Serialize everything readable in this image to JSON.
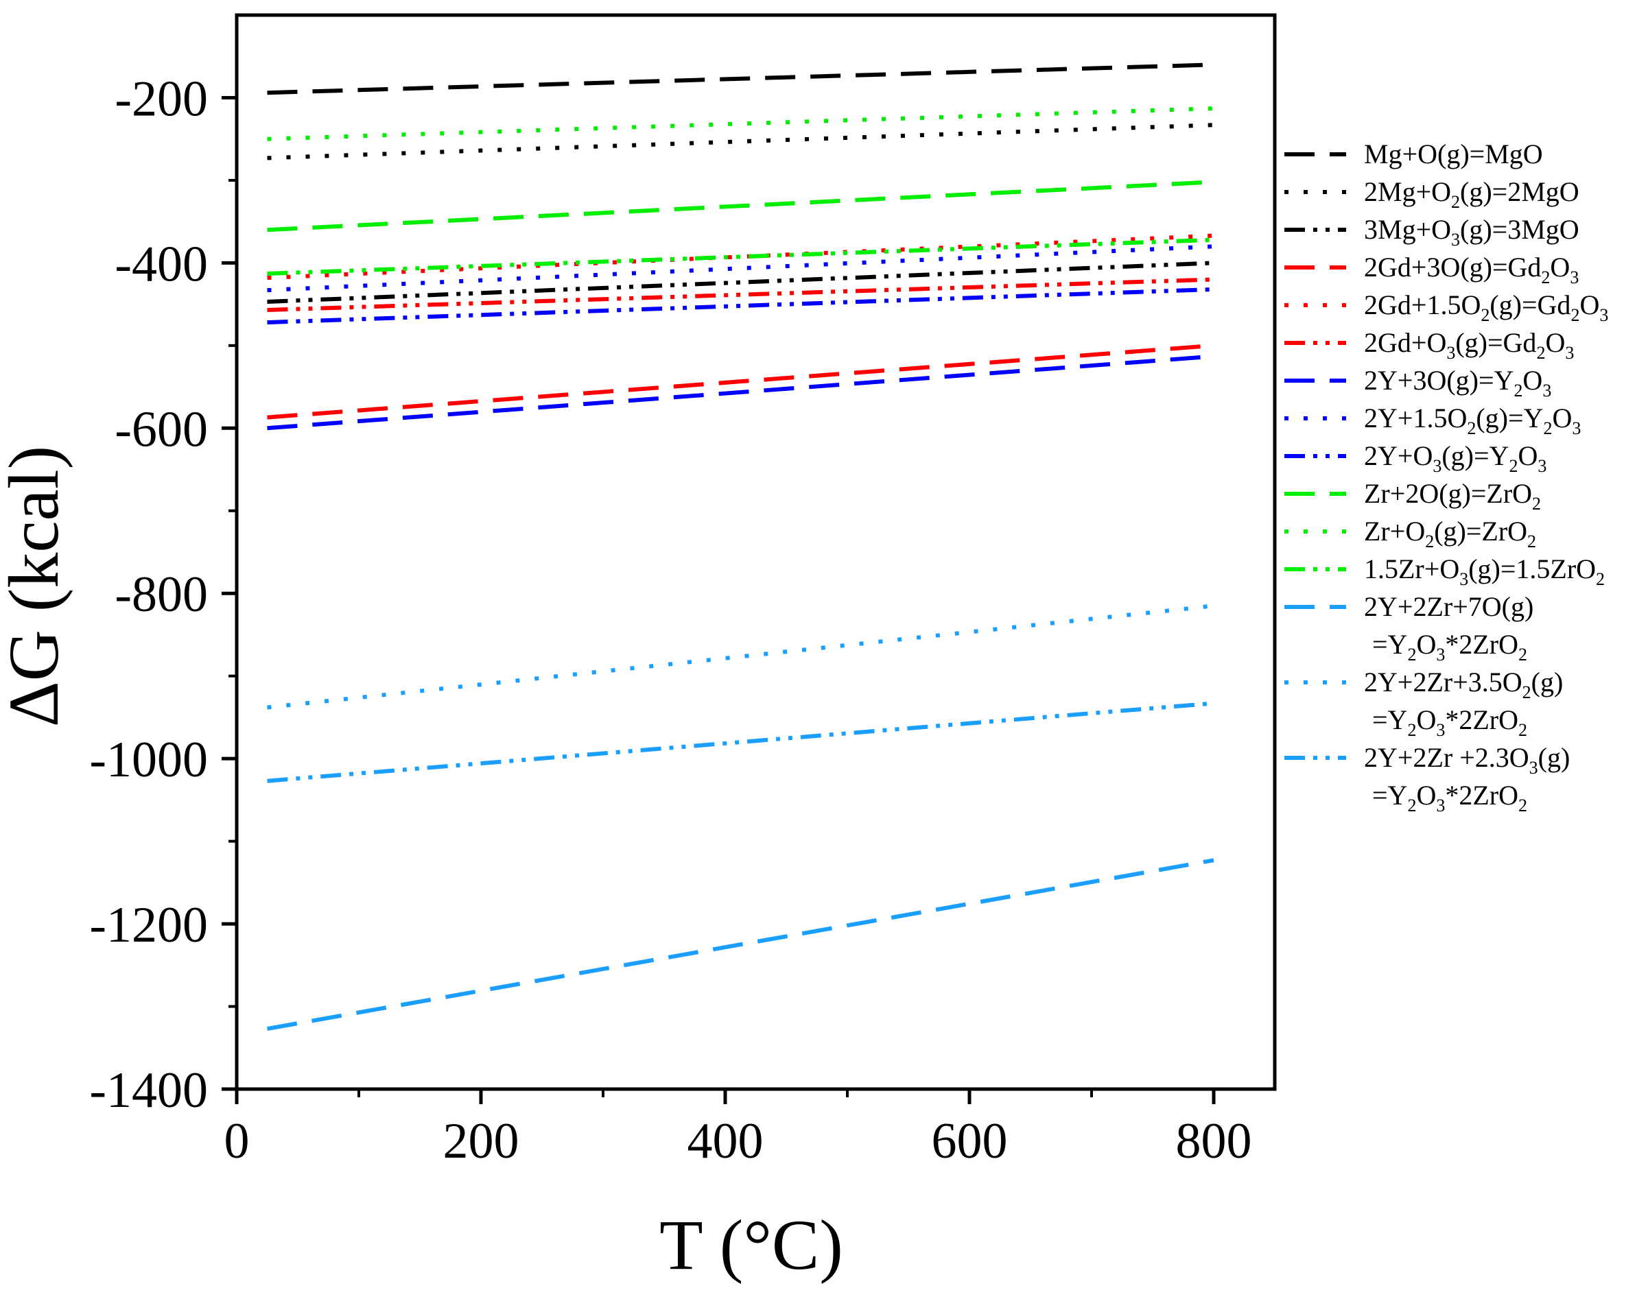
{
  "chart_data": {
    "type": "line",
    "xlabel": "T (°C)",
    "ylabel": "ΔG (kcal)",
    "xlim": [
      0,
      850
    ],
    "ylim": [
      -1400,
      -100
    ],
    "xticks": [
      0,
      200,
      400,
      600,
      800
    ],
    "yticks": [
      -200,
      -400,
      -600,
      -800,
      -1000,
      -1200,
      -1400
    ],
    "x_tick_labels": [
      "0",
      "200",
      "400",
      "600",
      "800"
    ],
    "y_tick_labels": [
      "-200",
      "-400",
      "-600",
      "-800",
      "-1000",
      "-1200",
      "-1400"
    ],
    "grid": false,
    "legend_position": "right, outside plot",
    "series": [
      {
        "label": [
          [
            "Mg+O(g)=MgO",
            ""
          ]
        ],
        "color": "#000000",
        "style": "dash",
        "x": [
          25,
          800
        ],
        "y": [
          -194,
          -160
        ]
      },
      {
        "label": [
          [
            "2Mg+O",
            ""
          ],
          [
            "2",
            "sub"
          ],
          [
            "(g)=2MgO",
            ""
          ]
        ],
        "color": "#000000",
        "style": "dot",
        "x": [
          25,
          800
        ],
        "y": [
          -273,
          -233
        ]
      },
      {
        "label": [
          [
            "3Mg+O",
            ""
          ],
          [
            "3",
            "sub"
          ],
          [
            "(g)=3MgO",
            ""
          ]
        ],
        "color": "#000000",
        "style": "dashdotdot",
        "x": [
          25,
          800
        ],
        "y": [
          -447,
          -400
        ]
      },
      {
        "label": [
          [
            "2Gd+3O(g)=Gd",
            ""
          ],
          [
            "2",
            "sub"
          ],
          [
            "O",
            ""
          ],
          [
            "3",
            "sub"
          ]
        ],
        "color": "#ff0000",
        "style": "dash",
        "x": [
          25,
          800
        ],
        "y": [
          -587,
          -500
        ]
      },
      {
        "label": [
          [
            "2Gd+1.5O",
            ""
          ],
          [
            "2",
            "sub"
          ],
          [
            "(g)=Gd",
            ""
          ],
          [
            "2",
            "sub"
          ],
          [
            "O",
            ""
          ],
          [
            "3",
            "sub"
          ]
        ],
        "color": "#ff0000",
        "style": "dot",
        "x": [
          25,
          800
        ],
        "y": [
          -418,
          -367
        ]
      },
      {
        "label": [
          [
            "2Gd+O",
            ""
          ],
          [
            "3",
            "sub"
          ],
          [
            "(g)=Gd",
            ""
          ],
          [
            "2",
            "sub"
          ],
          [
            "O",
            ""
          ],
          [
            "3",
            "sub"
          ]
        ],
        "color": "#ff0000",
        "style": "dashdotdot",
        "x": [
          25,
          800
        ],
        "y": [
          -457,
          -420
        ]
      },
      {
        "label": [
          [
            "2Y+3O(g)=Y",
            ""
          ],
          [
            "2",
            "sub"
          ],
          [
            "O",
            ""
          ],
          [
            "3",
            "sub"
          ]
        ],
        "color": "#0000ff",
        "style": "dash",
        "x": [
          25,
          800
        ],
        "y": [
          -600,
          -513
        ]
      },
      {
        "label": [
          [
            "2Y+1.5O",
            ""
          ],
          [
            "2",
            "sub"
          ],
          [
            "(g)=Y",
            ""
          ],
          [
            "2",
            "sub"
          ],
          [
            "O",
            ""
          ],
          [
            "3",
            "sub"
          ]
        ],
        "color": "#0000ff",
        "style": "dot",
        "x": [
          25,
          800
        ],
        "y": [
          -433,
          -380
        ]
      },
      {
        "label": [
          [
            "2Y+O",
            ""
          ],
          [
            "3",
            "sub"
          ],
          [
            "(g)=Y",
            ""
          ],
          [
            "2",
            "sub"
          ],
          [
            "O",
            ""
          ],
          [
            "3",
            "sub"
          ]
        ],
        "color": "#0000ff",
        "style": "dashdotdot",
        "x": [
          25,
          800
        ],
        "y": [
          -472,
          -432
        ]
      },
      {
        "label": [
          [
            "Zr+2O(g)=ZrO",
            ""
          ],
          [
            "2",
            "sub"
          ]
        ],
        "color": "#00ee00",
        "style": "dash",
        "x": [
          25,
          800
        ],
        "y": [
          -360,
          -302
        ]
      },
      {
        "label": [
          [
            "Zr+O",
            ""
          ],
          [
            "2",
            "sub"
          ],
          [
            "(g)=ZrO",
            ""
          ],
          [
            "2",
            "sub"
          ]
        ],
        "color": "#00ee00",
        "style": "dot",
        "x": [
          25,
          800
        ],
        "y": [
          -250,
          -213
        ]
      },
      {
        "label": [
          [
            "1.5Zr+O",
            ""
          ],
          [
            "3",
            "sub"
          ],
          [
            "(g)=1.5ZrO",
            ""
          ],
          [
            "2",
            "sub"
          ]
        ],
        "color": "#00ee00",
        "style": "dashdotdot",
        "x": [
          25,
          800
        ],
        "y": [
          -413,
          -372
        ]
      },
      {
        "label": [
          [
            "2Y+2Zr+7O(g)",
            ""
          ]
        ],
        "label2": [
          [
            "=Y",
            ""
          ],
          [
            "2",
            "sub"
          ],
          [
            "O",
            ""
          ],
          [
            "3",
            "sub"
          ],
          [
            "*2ZrO",
            ""
          ],
          [
            "2",
            "sub"
          ]
        ],
        "color": "#1a9fff",
        "style": "dash",
        "x": [
          25,
          800
        ],
        "y": [
          -1327,
          -1123
        ]
      },
      {
        "label": [
          [
            "2Y+2Zr+3.5O",
            ""
          ],
          [
            "2",
            "sub"
          ],
          [
            "(g)",
            ""
          ]
        ],
        "label2": [
          [
            "=Y",
            ""
          ],
          [
            "2",
            "sub"
          ],
          [
            "O",
            ""
          ],
          [
            "3",
            "sub"
          ],
          [
            "*2ZrO",
            ""
          ],
          [
            "2",
            "sub"
          ]
        ],
        "color": "#1a9fff",
        "style": "dot",
        "x": [
          25,
          800
        ],
        "y": [
          -938,
          -815
        ]
      },
      {
        "label": [
          [
            "2Y+2Zr +2.3O",
            ""
          ],
          [
            "3",
            "sub"
          ],
          [
            "(g)",
            ""
          ]
        ],
        "label2": [
          [
            "=Y",
            ""
          ],
          [
            "2",
            "sub"
          ],
          [
            "O",
            ""
          ],
          [
            "3",
            "sub"
          ],
          [
            "*2ZrO",
            ""
          ],
          [
            "2",
            "sub"
          ]
        ],
        "color": "#1a9fff",
        "style": "dashdotdot",
        "x": [
          25,
          800
        ],
        "y": [
          -1027,
          -933
        ]
      }
    ]
  }
}
